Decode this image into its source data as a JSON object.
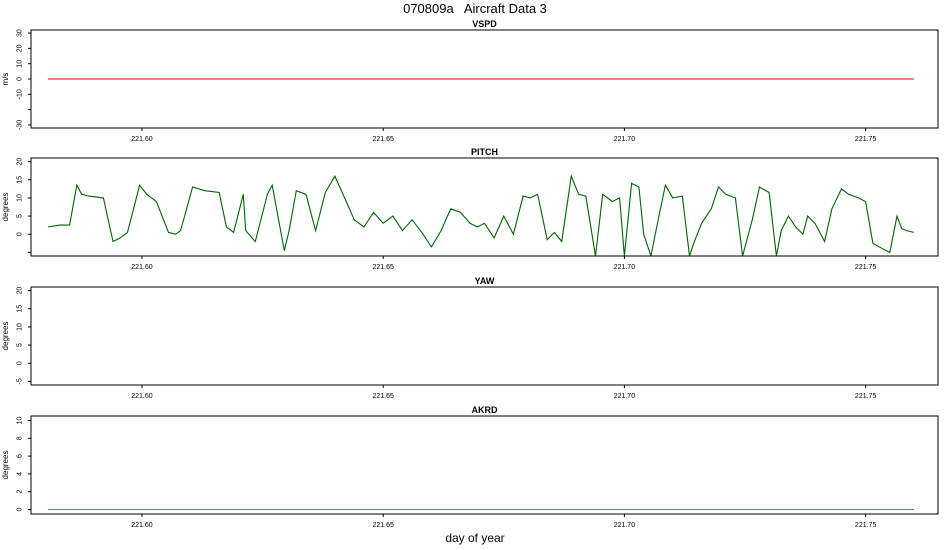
{
  "figure": {
    "title": "070809a   Aircraft Data 3",
    "xlabel": "day of year"
  },
  "chart_data": [
    {
      "type": "line",
      "title": "VSPD",
      "ylabel": "m/s",
      "xlim": [
        221.577,
        221.765
      ],
      "ylim": [
        -32,
        32
      ],
      "xticks": [
        "221.60",
        "221.65",
        "221.70",
        "221.75"
      ],
      "yticks": [
        "-30",
        "-10",
        "0",
        "10",
        "20",
        "30"
      ],
      "yticks_unlabeled": [
        -20
      ],
      "grid": false,
      "series_color": "#ff0000",
      "series": [
        {
          "x": [
            221.5805,
            221.76
          ],
          "y": [
            0,
            0
          ]
        }
      ]
    },
    {
      "type": "line",
      "title": "PITCH",
      "ylabel": "degrees",
      "xlim": [
        221.577,
        221.765
      ],
      "ylim": [
        -6,
        21
      ],
      "xticks": [
        "221.60",
        "221.65",
        "221.70",
        "221.75"
      ],
      "yticks": [
        "0",
        "5",
        "10",
        "15",
        "20"
      ],
      "yticks_unlabeled": [
        -5
      ],
      "grid": false,
      "series_color": "#006400",
      "series": [
        {
          "x": [
            221.5805,
            221.583,
            221.585,
            221.5865,
            221.5875,
            221.589,
            221.592,
            221.594,
            221.5955,
            221.597,
            221.5995,
            221.601,
            221.603,
            221.6055,
            221.607,
            221.608,
            221.6105,
            221.613,
            221.616,
            221.6175,
            221.619,
            221.621,
            221.6215,
            221.6235,
            221.626,
            221.627,
            221.6295,
            221.6305,
            221.632,
            221.634,
            221.636,
            221.638,
            221.64,
            221.642,
            221.644,
            221.646,
            221.648,
            221.65,
            221.652,
            221.654,
            221.656,
            221.658,
            221.66,
            221.662,
            221.664,
            221.666,
            221.668,
            221.6695,
            221.671,
            221.673,
            221.675,
            221.677,
            221.679,
            221.6805,
            221.682,
            221.684,
            221.6855,
            221.687,
            221.689,
            221.6905,
            221.692,
            221.694,
            221.6955,
            221.6975,
            221.699,
            221.7,
            221.7015,
            221.703,
            221.704,
            221.7055,
            221.707,
            221.7085,
            221.71,
            221.712,
            221.7135,
            221.7145,
            221.716,
            221.718,
            221.7195,
            221.721,
            221.723,
            221.7245,
            221.7265,
            221.728,
            221.73,
            221.7315,
            221.7325,
            221.734,
            221.7355,
            221.737,
            221.738,
            221.7395,
            221.7415,
            221.743,
            221.745,
            221.7465,
            221.7485,
            221.75,
            221.7515,
            221.7535,
            221.755,
            221.7565,
            221.7575,
            221.7585,
            221.76
          ],
          "y": [
            2.0,
            2.5,
            2.5,
            13.5,
            11.0,
            10.5,
            10.0,
            -2.0,
            -1.0,
            0.5,
            13.5,
            11.0,
            9.0,
            0.5,
            0.0,
            1.0,
            13.0,
            12.0,
            11.5,
            2.0,
            0.5,
            11.0,
            1.0,
            -2.0,
            11.0,
            13.5,
            -4.5,
            1.0,
            12.0,
            11.0,
            1.0,
            11.5,
            16.0,
            10.0,
            4.0,
            2.0,
            6.0,
            3.0,
            5.0,
            1.0,
            4.0,
            0.5,
            -3.5,
            1.0,
            7.0,
            6.0,
            3.0,
            2.0,
            3.0,
            -1.0,
            5.0,
            0.0,
            10.5,
            10.0,
            11.0,
            -1.5,
            0.5,
            -2.0,
            16.0,
            11.0,
            10.5,
            -6.0,
            11.0,
            9.0,
            10.0,
            -6.0,
            14.0,
            13.0,
            0.0,
            -6.0,
            4.0,
            13.5,
            10.0,
            10.5,
            -6.0,
            -2.0,
            3.0,
            7.0,
            13.0,
            11.0,
            10.0,
            -6.0,
            4.0,
            13.0,
            11.5,
            -6.0,
            1.0,
            5.0,
            2.0,
            0.0,
            5.0,
            3.0,
            -2.0,
            7.0,
            12.5,
            11.0,
            10.0,
            9.0,
            -2.5,
            -4.0,
            -5.0,
            5.0,
            1.5,
            1.0,
            0.5
          ]
        }
      ]
    },
    {
      "type": "line",
      "title": "YAW",
      "ylabel": "degrees",
      "xlim": [
        221.577,
        221.765
      ],
      "ylim": [
        -6,
        21
      ],
      "xticks": [
        "221.60",
        "221.65",
        "221.70",
        "221.75"
      ],
      "yticks": [
        "-5",
        "0",
        "5",
        "10",
        "15",
        "20"
      ],
      "yticks_unlabeled": [],
      "grid": false,
      "series_color": "#006400",
      "series": []
    },
    {
      "type": "line",
      "title": "AKRD",
      "ylabel": "degrees",
      "xlim": [
        221.577,
        221.765
      ],
      "ylim": [
        -0.5,
        10.5
      ],
      "xticks": [
        "221.60",
        "221.65",
        "221.70",
        "221.75"
      ],
      "yticks": [
        "0",
        "2",
        "4",
        "6",
        "8",
        "10"
      ],
      "yticks_unlabeled": [],
      "grid": false,
      "series_color": "#00cc00",
      "series": [
        {
          "x": [
            221.5805,
            221.76
          ],
          "y": [
            0,
            0
          ]
        }
      ]
    }
  ]
}
